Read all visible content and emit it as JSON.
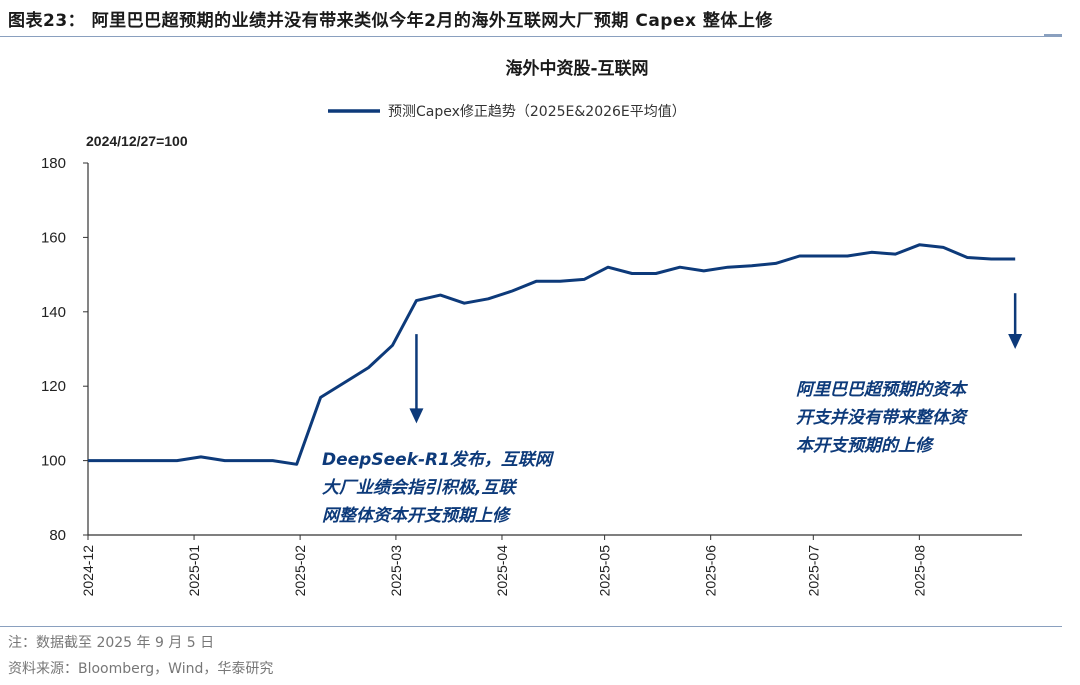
{
  "figure": {
    "label": "图表23：",
    "title": "阿里巴巴超预期的业绩并没有带来类似今年2月的海外互联网大厂预期 Capex 整体上修"
  },
  "footer": {
    "note": "注：数据截至 2025 年 9 月 5 日",
    "source": "资料来源：Bloomberg，Wind，华泰研究"
  },
  "colors": {
    "line": "#0d3a7a",
    "annotation": "#0d3a7a",
    "axis": "#333333"
  },
  "chart_data": {
    "type": "line",
    "title": "海外中资股-互联网",
    "base_note": "2024/12/27=100",
    "legend": "预测Capex修正趋势（2025E&2026E平均值）",
    "ylim": [
      80,
      180
    ],
    "yticks": [
      "80",
      "100",
      "120",
      "140",
      "160",
      "180"
    ],
    "xticks": [
      "2024-12",
      "2025-01",
      "2025-02",
      "2025-03",
      "2025-04",
      "2025-05",
      "2025-06",
      "2025-07",
      "2025-08"
    ],
    "x_range": [
      "2024-12-01",
      "2025-08-31"
    ],
    "series": [
      {
        "name": "预测Capex修正趋势（2025E&2026E平均值）",
        "x": [
          "2024-12-01",
          "2024-12-27",
          "2025-01-03",
          "2025-01-10",
          "2025-01-17",
          "2025-01-24",
          "2025-01-31",
          "2025-02-07",
          "2025-02-14",
          "2025-02-21",
          "2025-02-28",
          "2025-03-07",
          "2025-03-14",
          "2025-03-21",
          "2025-03-28",
          "2025-04-04",
          "2025-04-11",
          "2025-04-18",
          "2025-04-25",
          "2025-05-02",
          "2025-05-09",
          "2025-05-16",
          "2025-05-23",
          "2025-05-30",
          "2025-06-06",
          "2025-06-13",
          "2025-06-20",
          "2025-06-27",
          "2025-07-04",
          "2025-07-11",
          "2025-07-18",
          "2025-07-25",
          "2025-08-01",
          "2025-08-08",
          "2025-08-15",
          "2025-08-22",
          "2025-08-29"
        ],
        "values": [
          100,
          100,
          101,
          100,
          100,
          100,
          99,
          117,
          121,
          125,
          131,
          143,
          144.5,
          142.3,
          143.5,
          145.6,
          148.2,
          148.2,
          148.7,
          152,
          150.3,
          150.3,
          152,
          151,
          152,
          152.4,
          153,
          155,
          155,
          155,
          156,
          155.5,
          158,
          157.3,
          154.6,
          154.2,
          154.2
        ]
      }
    ],
    "annotations": [
      {
        "text_lines": [
          "DeepSeek-R1发布，互联网",
          "大厂业绩会指引积极,互联",
          "网整体资本开支预期上修"
        ],
        "arrow_date": "2025-03-07",
        "arrow_from": 134,
        "arrow_to": 110
      },
      {
        "text_lines": [
          "阿里巴巴超预期的资本",
          "开支并没有带来整体资",
          "本开支预期的上修"
        ],
        "arrow_date": "2025-08-29",
        "arrow_from": 145,
        "arrow_to": 130
      }
    ]
  }
}
